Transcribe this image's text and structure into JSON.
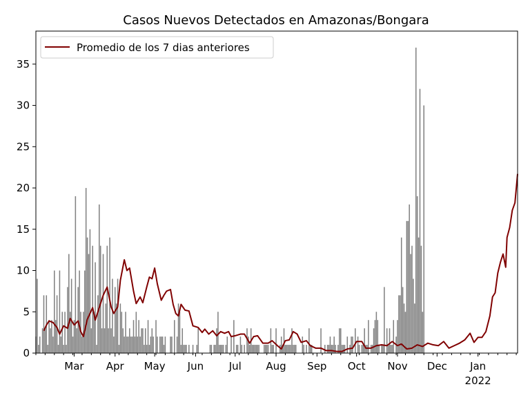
{
  "chart_data": {
    "type": "bar",
    "title": "Casos Nuevos Detectados en Amazonas/Bongara",
    "xlabel": "",
    "ylabel": "",
    "x_start": "2021-01-31",
    "x_end": "2022-01-31",
    "ylim": [
      0,
      39
    ],
    "yticks": [
      0,
      5,
      10,
      15,
      20,
      25,
      30,
      35
    ],
    "xticks": [
      {
        "date": "2021-03-01",
        "label": "Mar"
      },
      {
        "date": "2021-04-01",
        "label": "Apr"
      },
      {
        "date": "2021-05-01",
        "label": "May"
      },
      {
        "date": "2021-06-01",
        "label": "Jun"
      },
      {
        "date": "2021-07-01",
        "label": "Jul"
      },
      {
        "date": "2021-08-01",
        "label": "Aug"
      },
      {
        "date": "2021-09-01",
        "label": "Sep"
      },
      {
        "date": "2021-10-01",
        "label": "Oct"
      },
      {
        "date": "2021-11-01",
        "label": "Nov"
      },
      {
        "date": "2021-12-01",
        "label": "Dec"
      },
      {
        "date": "2022-01-01",
        "label": "Jan",
        "sublabel": "2022"
      }
    ],
    "grid": false,
    "legend": {
      "position": "top-left",
      "entries": [
        "Promedio de los 7 dias anteriores"
      ]
    },
    "colors": {
      "bars": "#808080",
      "line": "#800000"
    },
    "series": [
      {
        "type": "bar",
        "values": [
          2,
          9,
          1,
          2,
          0,
          3,
          7,
          3,
          7,
          1,
          4,
          3,
          4,
          2,
          10,
          4,
          7,
          1,
          10,
          2,
          5,
          1,
          5,
          1,
          8,
          12,
          5,
          9,
          2,
          4,
          19,
          3,
          8,
          10,
          5,
          2,
          5,
          10,
          20,
          14,
          12,
          15,
          3,
          13,
          5,
          11,
          1,
          7,
          18,
          13,
          3,
          12,
          3,
          6,
          13,
          3,
          14,
          3,
          9,
          2,
          8,
          6,
          9,
          1,
          6,
          5,
          3,
          2,
          5,
          2,
          2,
          3,
          2,
          2,
          4,
          2,
          5,
          2,
          4,
          2,
          3,
          3,
          1,
          3,
          1,
          4,
          1,
          2,
          3,
          2,
          0,
          4,
          2,
          0,
          2,
          2,
          2,
          1,
          2,
          0,
          0,
          0,
          2,
          2,
          0,
          4,
          0,
          2,
          6,
          5,
          1,
          3,
          1,
          1,
          1,
          0,
          1,
          0,
          0,
          1,
          0,
          0,
          1,
          3,
          0,
          0,
          0,
          0,
          0,
          0,
          0,
          0,
          1,
          1,
          0,
          1,
          1,
          3,
          5,
          1,
          1,
          1,
          1,
          0,
          1,
          2,
          0,
          0,
          2,
          0,
          4,
          0,
          1,
          1,
          0,
          2,
          1,
          0,
          1,
          0,
          3,
          2,
          1,
          3,
          1,
          1,
          1,
          1,
          1,
          1,
          0,
          0,
          0,
          1,
          1,
          1,
          1,
          0,
          3,
          1,
          1,
          0,
          3,
          0,
          0,
          1,
          2,
          1,
          3,
          1,
          1,
          1,
          1,
          1,
          3,
          1,
          1,
          1,
          0,
          0,
          0,
          0,
          2,
          1,
          0,
          1,
          0,
          3,
          1,
          1,
          0,
          0,
          0,
          0,
          0,
          0,
          3,
          0,
          0,
          1,
          0,
          1,
          1,
          2,
          1,
          1,
          2,
          1,
          0,
          1,
          3,
          3,
          1,
          1,
          1,
          0,
          2,
          0,
          1,
          2,
          2,
          0,
          3,
          0,
          2,
          1,
          0,
          1,
          1,
          3,
          1,
          1,
          4,
          0,
          1,
          1,
          3,
          4,
          5,
          4,
          1,
          0,
          1,
          1,
          8,
          0,
          3,
          1,
          3,
          1,
          1,
          4,
          0,
          2,
          4,
          7,
          7,
          14,
          8,
          6,
          5,
          16,
          16,
          18,
          12,
          13,
          9,
          6,
          37,
          19,
          14,
          32,
          13,
          5,
          30
        ],
        "start": "2021-01-31"
      },
      {
        "type": "line",
        "name": "Promedio de los 7 dias anteriores",
        "points": [
          [
            "2021-02-06",
            2.7
          ],
          [
            "2021-02-08",
            3.4
          ],
          [
            "2021-02-10",
            3.9
          ],
          [
            "2021-02-13",
            3.7
          ],
          [
            "2021-02-16",
            3.1
          ],
          [
            "2021-02-18",
            2.3
          ],
          [
            "2021-02-21",
            3.3
          ],
          [
            "2021-02-24",
            3.0
          ],
          [
            "2021-02-26",
            4.2
          ],
          [
            "2021-03-01",
            3.4
          ],
          [
            "2021-03-04",
            3.9
          ],
          [
            "2021-03-06",
            2.6
          ],
          [
            "2021-03-08",
            2.0
          ],
          [
            "2021-03-11",
            4.1
          ],
          [
            "2021-03-15",
            5.5
          ],
          [
            "2021-03-17",
            4.0
          ],
          [
            "2021-03-20",
            5.5
          ],
          [
            "2021-03-23",
            7.0
          ],
          [
            "2021-03-26",
            8.0
          ],
          [
            "2021-03-29",
            5.6
          ],
          [
            "2021-03-31",
            4.8
          ],
          [
            "2021-04-03",
            5.6
          ],
          [
            "2021-04-05",
            8.8
          ],
          [
            "2021-04-08",
            11.3
          ],
          [
            "2021-04-10",
            10.0
          ],
          [
            "2021-04-12",
            10.3
          ],
          [
            "2021-04-15",
            7.5
          ],
          [
            "2021-04-17",
            6.0
          ],
          [
            "2021-04-20",
            6.8
          ],
          [
            "2021-04-22",
            6.1
          ],
          [
            "2021-04-25",
            8.0
          ],
          [
            "2021-04-27",
            9.2
          ],
          [
            "2021-04-29",
            9.0
          ],
          [
            "2021-05-01",
            10.3
          ],
          [
            "2021-05-03",
            8.4
          ],
          [
            "2021-05-06",
            6.4
          ],
          [
            "2021-05-08",
            7.0
          ],
          [
            "2021-05-10",
            7.5
          ],
          [
            "2021-05-13",
            7.7
          ],
          [
            "2021-05-15",
            5.9
          ],
          [
            "2021-05-17",
            4.8
          ],
          [
            "2021-05-19",
            4.5
          ],
          [
            "2021-05-21",
            5.9
          ],
          [
            "2021-05-24",
            5.2
          ],
          [
            "2021-05-27",
            5.1
          ],
          [
            "2021-05-30",
            3.3
          ],
          [
            "2021-06-03",
            3.1
          ],
          [
            "2021-06-06",
            2.5
          ],
          [
            "2021-06-08",
            2.9
          ],
          [
            "2021-06-11",
            2.3
          ],
          [
            "2021-06-14",
            2.7
          ],
          [
            "2021-06-17",
            2.1
          ],
          [
            "2021-06-20",
            2.6
          ],
          [
            "2021-06-23",
            2.4
          ],
          [
            "2021-06-26",
            2.6
          ],
          [
            "2021-06-28",
            2.0
          ],
          [
            "2021-07-01",
            2.1
          ],
          [
            "2021-07-05",
            2.3
          ],
          [
            "2021-07-08",
            2.3
          ],
          [
            "2021-07-12",
            1.2
          ],
          [
            "2021-07-15",
            2.0
          ],
          [
            "2021-07-18",
            2.1
          ],
          [
            "2021-07-22",
            1.2
          ],
          [
            "2021-07-26",
            1.2
          ],
          [
            "2021-07-29",
            1.5
          ],
          [
            "2021-08-02",
            0.9
          ],
          [
            "2021-08-05",
            0.5
          ],
          [
            "2021-08-08",
            1.5
          ],
          [
            "2021-08-11",
            1.6
          ],
          [
            "2021-08-14",
            2.6
          ],
          [
            "2021-08-17",
            2.3
          ],
          [
            "2021-08-20",
            1.3
          ],
          [
            "2021-08-24",
            1.5
          ],
          [
            "2021-08-27",
            0.9
          ],
          [
            "2021-08-31",
            0.6
          ],
          [
            "2021-09-04",
            0.6
          ],
          [
            "2021-09-08",
            0.3
          ],
          [
            "2021-09-12",
            0.3
          ],
          [
            "2021-09-16",
            0.2
          ],
          [
            "2021-09-20",
            0.2
          ],
          [
            "2021-09-24",
            0.5
          ],
          [
            "2021-09-28",
            0.6
          ],
          [
            "2021-10-01",
            1.4
          ],
          [
            "2021-10-05",
            1.4
          ],
          [
            "2021-10-08",
            0.6
          ],
          [
            "2021-10-12",
            0.6
          ],
          [
            "2021-10-16",
            0.9
          ],
          [
            "2021-10-20",
            1.0
          ],
          [
            "2021-10-24",
            0.9
          ],
          [
            "2021-10-28",
            1.4
          ],
          [
            "2021-11-01",
            0.9
          ],
          [
            "2021-11-04",
            1.1
          ],
          [
            "2021-11-08",
            0.5
          ],
          [
            "2021-11-12",
            0.6
          ],
          [
            "2021-11-16",
            1.0
          ],
          [
            "2021-11-20",
            0.8
          ],
          [
            "2021-11-24",
            1.2
          ],
          [
            "2021-11-28",
            1.0
          ],
          [
            "2021-12-02",
            0.9
          ],
          [
            "2021-12-06",
            1.4
          ],
          [
            "2021-12-10",
            0.6
          ],
          [
            "2021-12-14",
            0.9
          ],
          [
            "2021-12-18",
            1.2
          ],
          [
            "2021-12-22",
            1.6
          ],
          [
            "2021-12-26",
            2.4
          ],
          [
            "2021-12-29",
            1.3
          ],
          [
            "2022-01-01",
            1.9
          ],
          [
            "2022-01-04",
            1.9
          ],
          [
            "2022-01-07",
            2.6
          ],
          [
            "2022-01-10",
            4.5
          ],
          [
            "2022-01-12",
            6.8
          ],
          [
            "2022-01-14",
            7.3
          ],
          [
            "2022-01-16",
            9.7
          ],
          [
            "2022-01-18",
            11.0
          ],
          [
            "2022-01-20",
            12.0
          ],
          [
            "2022-01-22",
            10.4
          ],
          [
            "2022-01-23",
            14.0
          ],
          [
            "2022-01-25",
            15.2
          ],
          [
            "2022-01-27",
            17.3
          ],
          [
            "2022-01-29",
            18.2
          ],
          [
            "2022-01-31",
            21.7
          ]
        ]
      }
    ]
  }
}
